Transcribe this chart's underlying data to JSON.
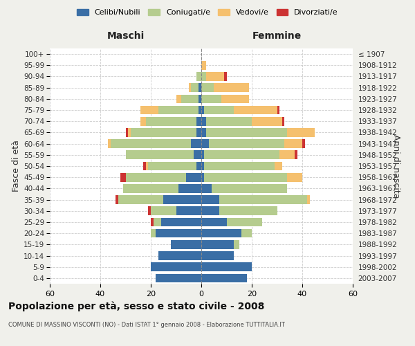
{
  "age_groups": [
    "0-4",
    "5-9",
    "10-14",
    "15-19",
    "20-24",
    "25-29",
    "30-34",
    "35-39",
    "40-44",
    "45-49",
    "50-54",
    "55-59",
    "60-64",
    "65-69",
    "70-74",
    "75-79",
    "80-84",
    "85-89",
    "90-94",
    "95-99",
    "100+"
  ],
  "birth_years": [
    "2003-2007",
    "1998-2002",
    "1993-1997",
    "1988-1992",
    "1983-1987",
    "1978-1982",
    "1973-1977",
    "1968-1972",
    "1963-1967",
    "1958-1962",
    "1953-1957",
    "1948-1952",
    "1943-1947",
    "1938-1942",
    "1933-1937",
    "1928-1932",
    "1923-1927",
    "1918-1922",
    "1913-1917",
    "1908-1912",
    "≤ 1907"
  ],
  "colors": {
    "celibi": "#3a6ea5",
    "coniugati": "#b5cc8e",
    "vedovi": "#f5c06e",
    "divorziati": "#cc3333"
  },
  "maschi": {
    "celibi": [
      18,
      20,
      17,
      12,
      18,
      16,
      10,
      15,
      9,
      6,
      2,
      3,
      4,
      2,
      2,
      1,
      1,
      1,
      0,
      0,
      0
    ],
    "coniugati": [
      0,
      0,
      0,
      0,
      2,
      3,
      10,
      18,
      22,
      24,
      19,
      27,
      32,
      26,
      20,
      16,
      7,
      3,
      2,
      0,
      0
    ],
    "vedovi": [
      0,
      0,
      0,
      0,
      0,
      0,
      0,
      0,
      0,
      0,
      1,
      0,
      1,
      1,
      2,
      7,
      2,
      1,
      0,
      0,
      0
    ],
    "divorziati": [
      0,
      0,
      0,
      0,
      0,
      1,
      1,
      1,
      0,
      2,
      1,
      0,
      0,
      1,
      0,
      0,
      0,
      0,
      0,
      0,
      0
    ]
  },
  "femmine": {
    "celibi": [
      18,
      20,
      13,
      13,
      16,
      10,
      7,
      7,
      4,
      1,
      1,
      1,
      3,
      2,
      2,
      1,
      0,
      0,
      0,
      0,
      0
    ],
    "coniugati": [
      0,
      0,
      0,
      2,
      4,
      14,
      23,
      35,
      30,
      33,
      28,
      30,
      30,
      32,
      18,
      12,
      8,
      5,
      2,
      0,
      0
    ],
    "vedovi": [
      0,
      0,
      0,
      0,
      0,
      0,
      0,
      1,
      0,
      6,
      3,
      6,
      7,
      11,
      12,
      17,
      11,
      14,
      7,
      2,
      0
    ],
    "divorziati": [
      0,
      0,
      0,
      0,
      0,
      0,
      0,
      0,
      0,
      0,
      0,
      1,
      1,
      0,
      1,
      1,
      0,
      0,
      1,
      0,
      0
    ]
  },
  "xlim": 60,
  "title": "Popolazione per età, sesso e stato civile - 2008",
  "subtitle": "COMUNE DI MASSINO VISCONTI (NO) - Dati ISTAT 1° gennaio 2008 - Elaborazione TUTTITALIA.IT",
  "ylabel_left": "Fasce di età",
  "ylabel_right": "Anni di nascita",
  "header_left": "Maschi",
  "header_right": "Femmine",
  "legend_labels": [
    "Celibi/Nubili",
    "Coniugati/e",
    "Vedovi/e",
    "Divorziati/e"
  ],
  "background_color": "#f0f0eb",
  "bar_bg_color": "#ffffff",
  "grid_color": "#cccccc",
  "center_line_color": "#888888"
}
